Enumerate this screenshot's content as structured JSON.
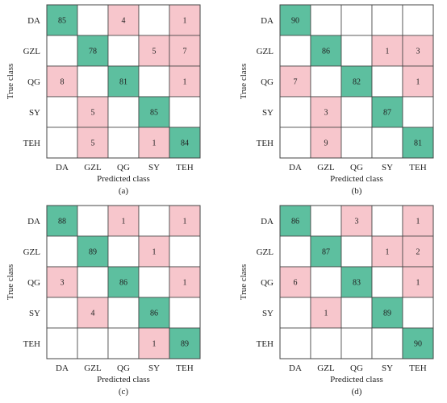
{
  "colors": {
    "diagonal": "#5dbf9f",
    "off_diagonal": "#f7c6cc",
    "empty": "#ffffff",
    "grid": "#444444"
  },
  "chart_data": [
    {
      "type": "heatmap",
      "caption": "(a)",
      "xlabel": "Predicted class",
      "ylabel": "True class",
      "classes": [
        "DA",
        "GZL",
        "QG",
        "SY",
        "TEH"
      ],
      "matrix": [
        [
          85,
          null,
          4,
          null,
          1
        ],
        [
          null,
          78,
          null,
          5,
          7
        ],
        [
          8,
          null,
          81,
          null,
          1
        ],
        [
          null,
          5,
          null,
          85,
          null
        ],
        [
          null,
          5,
          null,
          1,
          84
        ]
      ]
    },
    {
      "type": "heatmap",
      "caption": "(b)",
      "xlabel": "Predicted class",
      "ylabel": "True class",
      "classes": [
        "DA",
        "GZL",
        "QG",
        "SY",
        "TEH"
      ],
      "matrix": [
        [
          90,
          null,
          null,
          null,
          null
        ],
        [
          null,
          86,
          null,
          1,
          3
        ],
        [
          7,
          null,
          82,
          null,
          1
        ],
        [
          null,
          3,
          null,
          87,
          null
        ],
        [
          null,
          9,
          null,
          null,
          81
        ]
      ]
    },
    {
      "type": "heatmap",
      "caption": "(c)",
      "xlabel": "Predicted class",
      "ylabel": "True class",
      "classes": [
        "DA",
        "GZL",
        "QG",
        "SY",
        "TEH"
      ],
      "matrix": [
        [
          88,
          null,
          1,
          null,
          1
        ],
        [
          null,
          89,
          null,
          1,
          null
        ],
        [
          3,
          null,
          86,
          null,
          1
        ],
        [
          null,
          4,
          null,
          86,
          null
        ],
        [
          null,
          null,
          null,
          1,
          89
        ]
      ]
    },
    {
      "type": "heatmap",
      "caption": "(d)",
      "xlabel": "Predicted class",
      "ylabel": "True class",
      "classes": [
        "DA",
        "GZL",
        "QG",
        "SY",
        "TEH"
      ],
      "matrix": [
        [
          86,
          null,
          3,
          null,
          1
        ],
        [
          null,
          87,
          null,
          1,
          2
        ],
        [
          6,
          null,
          83,
          null,
          1
        ],
        [
          null,
          1,
          null,
          89,
          null
        ],
        [
          null,
          null,
          null,
          null,
          90
        ]
      ]
    }
  ]
}
